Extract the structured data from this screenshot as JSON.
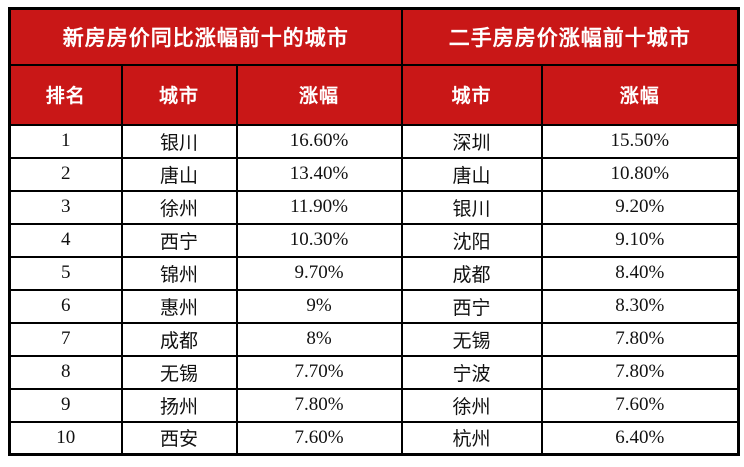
{
  "colors": {
    "header_bg": "#c91717",
    "header_text": "#ffffff",
    "body_bg": "#ffffff",
    "body_text": "#111111",
    "border": "#000000"
  },
  "chart_data": {
    "type": "table",
    "sections": [
      {
        "title": "新房房价同比涨幅前十的城市",
        "columns": [
          "排名",
          "城市",
          "涨幅"
        ],
        "rows": [
          [
            "1",
            "银川",
            "16.60%"
          ],
          [
            "2",
            "唐山",
            "13.40%"
          ],
          [
            "3",
            "徐州",
            "11.90%"
          ],
          [
            "4",
            "西宁",
            "10.30%"
          ],
          [
            "5",
            "锦州",
            "9.70%"
          ],
          [
            "6",
            "惠州",
            "9%"
          ],
          [
            "7",
            "成都",
            "8%"
          ],
          [
            "8",
            "无锡",
            "7.70%"
          ],
          [
            "9",
            "扬州",
            "7.80%"
          ],
          [
            "10",
            "西安",
            "7.60%"
          ]
        ]
      },
      {
        "title": "二手房房价涨幅前十城市",
        "columns": [
          "城市",
          "涨幅"
        ],
        "rows": [
          [
            "深圳",
            "15.50%"
          ],
          [
            "唐山",
            "10.80%"
          ],
          [
            "银川",
            "9.20%"
          ],
          [
            "沈阳",
            "9.10%"
          ],
          [
            "成都",
            "8.40%"
          ],
          [
            "西宁",
            "8.30%"
          ],
          [
            "无锡",
            "7.80%"
          ],
          [
            "宁波",
            "7.80%"
          ],
          [
            "徐州",
            "7.60%"
          ],
          [
            "杭州",
            "6.40%"
          ]
        ]
      }
    ]
  }
}
